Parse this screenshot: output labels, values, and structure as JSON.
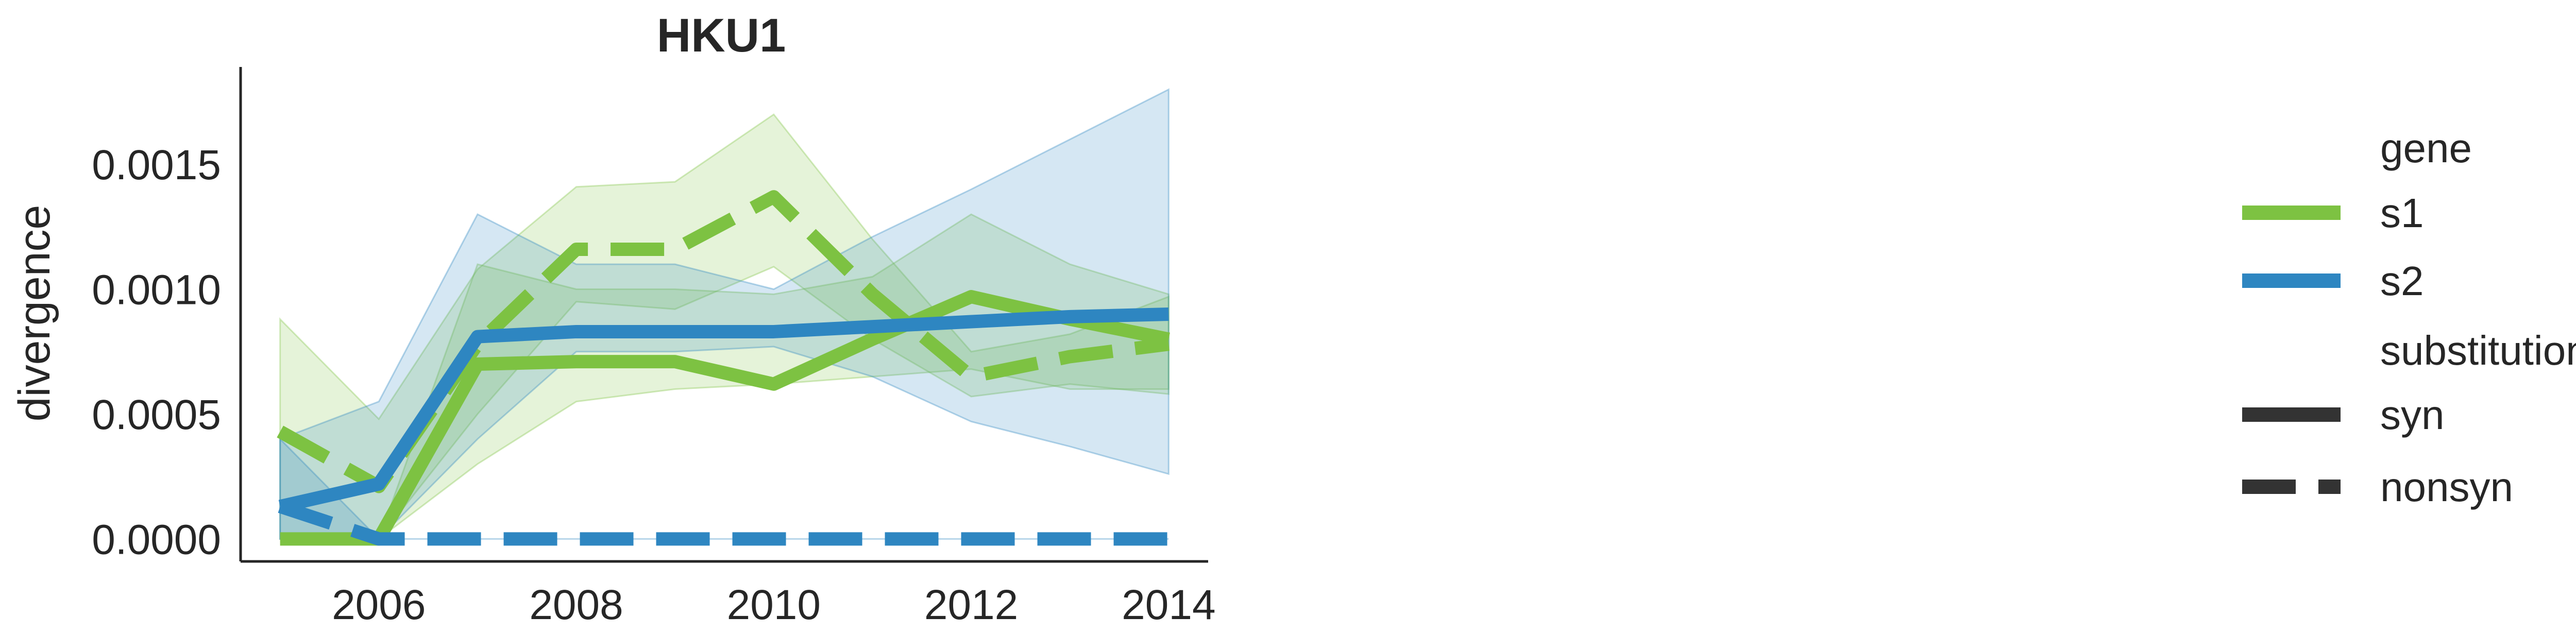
{
  "chart_data": {
    "type": "line",
    "title": "HKU1",
    "xlabel": "",
    "ylabel": "divergence",
    "xlim": [
      2004.6,
      2014.4
    ],
    "ylim": [
      -9e-05,
      0.00189
    ],
    "x_ticks": [
      "2006",
      "2008",
      "2010",
      "2012",
      "2014"
    ],
    "x_tick_values": [
      2006,
      2008,
      2010,
      2012,
      2014
    ],
    "y_ticks": [
      "0.0000",
      "0.0005",
      "0.0010",
      "0.0015"
    ],
    "y_tick_values": [
      0,
      0.0005,
      0.001,
      0.0015
    ],
    "grid": false,
    "legend_position": "right",
    "colors": {
      "s1": "#7dc242",
      "s2": "#2e86c1",
      "legend_style": "#333333",
      "text": "#262626"
    },
    "legend": {
      "gene_title": "gene",
      "gene_items": [
        "s1",
        "s2"
      ],
      "substitution_title": "substitution",
      "substitution_items": [
        "syn",
        "nonsyn"
      ]
    },
    "x": [
      2005,
      2006,
      2007,
      2008,
      2009,
      2010,
      2011,
      2012,
      2013,
      2014
    ],
    "series": [
      {
        "gene": "s1",
        "substitution": "syn",
        "dashed": false,
        "values": [
          0,
          0,
          0.0007,
          0.00071,
          0.00071,
          0.00062,
          0.0008,
          0.00097,
          0.00088,
          0.0008
        ],
        "lower": [
          0,
          0,
          0.0003,
          0.00055,
          0.0006,
          0.00062,
          0.00065,
          0.00068,
          0.0006,
          0.0006
        ],
        "upper": [
          0,
          0,
          0.0011,
          0.001,
          0.001,
          0.00098,
          0.00105,
          0.0013,
          0.0011,
          0.00098
        ]
      },
      {
        "gene": "s1",
        "substitution": "nonsyn",
        "dashed": true,
        "values": [
          0.00043,
          0.00021,
          0.00078,
          0.00116,
          0.00116,
          0.00137,
          0.00098,
          0.00065,
          0.00073,
          0.00078
        ],
        "lower": [
          0,
          0,
          0.0005,
          0.00095,
          0.00092,
          0.00109,
          0.0008,
          0.00057,
          0.00062,
          0.00058
        ],
        "upper": [
          0.00088,
          0.00048,
          0.00108,
          0.00141,
          0.00143,
          0.0017,
          0.0012,
          0.00075,
          0.00082,
          0.00097
        ]
      },
      {
        "gene": "s2",
        "substitution": "syn",
        "dashed": false,
        "values": [
          0.00013,
          0.00022,
          0.00081,
          0.00083,
          0.00083,
          0.00083,
          0.00085,
          0.00087,
          0.00089,
          0.0009
        ],
        "lower": [
          0,
          0,
          0.0004,
          0.00075,
          0.00075,
          0.00077,
          0.00065,
          0.00047,
          0.00037,
          0.00026
        ],
        "upper": [
          0.0004,
          0.00055,
          0.0013,
          0.0011,
          0.0011,
          0.001,
          0.00121,
          0.0014,
          0.0016,
          0.0018
        ]
      },
      {
        "gene": "s2",
        "substitution": "nonsyn",
        "dashed": true,
        "values": [
          0.00013,
          0,
          0,
          0,
          0,
          0,
          0,
          0,
          0,
          0
        ],
        "lower": [
          0,
          0,
          0,
          0,
          0,
          0,
          0,
          0,
          0,
          0
        ],
        "upper": [
          0.0004,
          0,
          0,
          0,
          0,
          0,
          0,
          0,
          0,
          0
        ]
      }
    ]
  }
}
